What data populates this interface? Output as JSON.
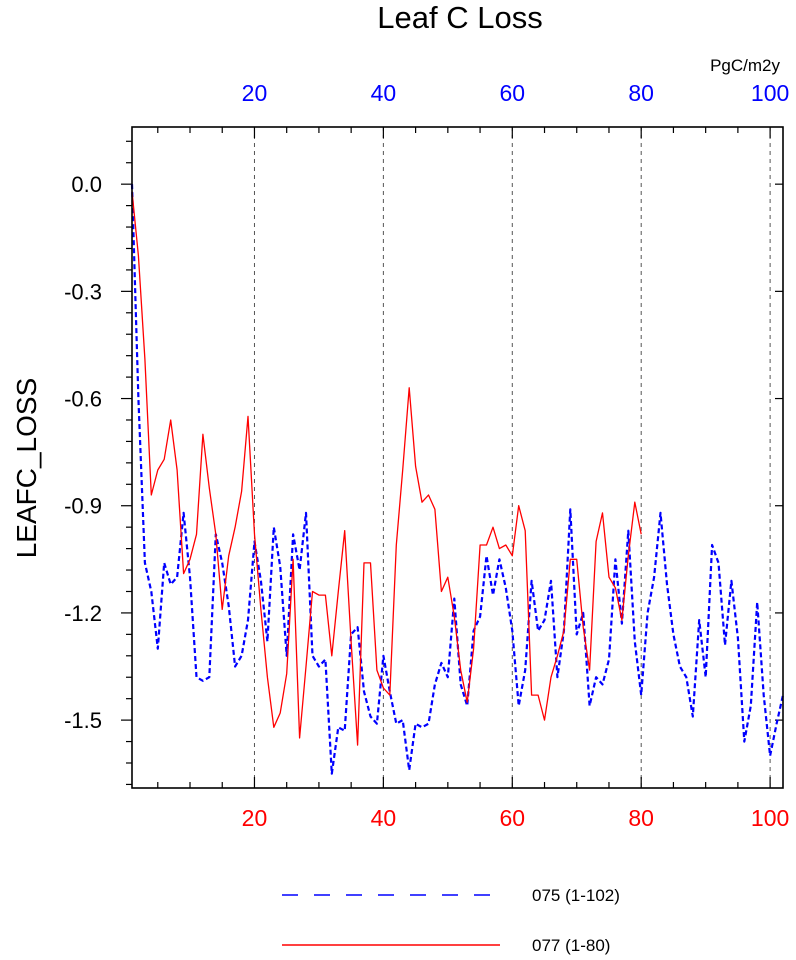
{
  "chart_data": {
    "type": "line",
    "title": "Leaf C Loss",
    "units": "PgC/m2y",
    "ylabel": "LEAFC_LOSS",
    "xlabel": "",
    "xlim": [
      1,
      102
    ],
    "ylim": [
      -1.69,
      0.16
    ],
    "y_ticks": [
      "0.0",
      "-0.3",
      "-0.6",
      "-0.9",
      "-1.2",
      "-1.5"
    ],
    "x_ticks_top": [
      "20",
      "40",
      "60",
      "80",
      "100"
    ],
    "x_ticks_bottom": [
      "20",
      "40",
      "60",
      "80",
      "100"
    ],
    "grid": "vertical dashed lines at x = 20, 40, 60, 80, 100",
    "legend_position": "bottom-center",
    "series": [
      {
        "name": "075 (1-102)",
        "color": "#0000ff",
        "style": "dashed",
        "x": [
          1,
          2,
          3,
          4,
          5,
          6,
          7,
          8,
          9,
          10,
          11,
          12,
          13,
          14,
          15,
          16,
          17,
          18,
          19,
          20,
          21,
          22,
          23,
          24,
          25,
          26,
          27,
          28,
          29,
          30,
          31,
          32,
          33,
          34,
          35,
          36,
          37,
          38,
          39,
          40,
          41,
          42,
          43,
          44,
          45,
          46,
          47,
          48,
          49,
          50,
          51,
          52,
          53,
          54,
          55,
          56,
          57,
          58,
          59,
          60,
          61,
          62,
          63,
          64,
          65,
          66,
          67,
          68,
          69,
          70,
          71,
          72,
          73,
          74,
          75,
          76,
          77,
          78,
          79,
          80,
          81,
          82,
          83,
          84,
          85,
          86,
          87,
          88,
          89,
          90,
          91,
          92,
          93,
          94,
          95,
          96,
          97,
          98,
          99,
          100,
          101,
          102
        ],
        "values": [
          0.0,
          -0.6,
          -1.06,
          -1.14,
          -1.3,
          -1.06,
          -1.12,
          -1.1,
          -0.92,
          -1.1,
          -1.38,
          -1.39,
          -1.38,
          -0.98,
          -1.06,
          -1.18,
          -1.35,
          -1.32,
          -1.22,
          -1.0,
          -1.11,
          -1.28,
          -0.96,
          -1.07,
          -1.32,
          -0.98,
          -1.08,
          -0.92,
          -1.32,
          -1.35,
          -1.33,
          -1.65,
          -1.52,
          -1.53,
          -1.26,
          -1.24,
          -1.42,
          -1.49,
          -1.51,
          -1.32,
          -1.42,
          -1.51,
          -1.5,
          -1.64,
          -1.51,
          -1.52,
          -1.51,
          -1.4,
          -1.34,
          -1.38,
          -1.16,
          -1.4,
          -1.46,
          -1.25,
          -1.21,
          -1.04,
          -1.15,
          -1.05,
          -1.13,
          -1.25,
          -1.46,
          -1.36,
          -1.11,
          -1.25,
          -1.22,
          -1.11,
          -1.38,
          -1.25,
          -0.91,
          -1.26,
          -1.2,
          -1.46,
          -1.38,
          -1.4,
          -1.33,
          -1.05,
          -1.23,
          -0.97,
          -1.28,
          -1.43,
          -1.2,
          -1.1,
          -0.92,
          -1.12,
          -1.26,
          -1.35,
          -1.38,
          -1.49,
          -1.22,
          -1.38,
          -1.01,
          -1.06,
          -1.29,
          -1.11,
          -1.27,
          -1.56,
          -1.46,
          -1.17,
          -1.43,
          -1.6,
          -1.51,
          -1.43
        ]
      },
      {
        "name": "077 (1-80)",
        "color": "#ff0000",
        "style": "solid",
        "x": [
          1,
          2,
          3,
          4,
          5,
          6,
          7,
          8,
          9,
          10,
          11,
          12,
          13,
          14,
          15,
          16,
          17,
          18,
          19,
          20,
          21,
          22,
          23,
          24,
          25,
          26,
          27,
          28,
          29,
          30,
          31,
          32,
          33,
          34,
          35,
          36,
          37,
          38,
          39,
          40,
          41,
          42,
          43,
          44,
          45,
          46,
          47,
          48,
          49,
          50,
          51,
          52,
          53,
          54,
          55,
          56,
          57,
          58,
          59,
          60,
          61,
          62,
          63,
          64,
          65,
          66,
          67,
          68,
          69,
          70,
          71,
          72,
          73,
          74,
          75,
          76,
          77,
          78,
          79,
          80
        ],
        "values": [
          -0.02,
          -0.2,
          -0.49,
          -0.87,
          -0.8,
          -0.77,
          -0.66,
          -0.8,
          -1.09,
          -1.05,
          -0.98,
          -0.7,
          -0.85,
          -0.98,
          -1.19,
          -1.04,
          -0.96,
          -0.86,
          -0.65,
          -0.98,
          -1.19,
          -1.38,
          -1.52,
          -1.48,
          -1.37,
          -1.05,
          -1.55,
          -1.35,
          -1.14,
          -1.15,
          -1.15,
          -1.32,
          -1.14,
          -0.97,
          -1.28,
          -1.57,
          -1.06,
          -1.06,
          -1.36,
          -1.41,
          -1.43,
          -1.01,
          -0.8,
          -0.57,
          -0.79,
          -0.89,
          -0.87,
          -0.91,
          -1.14,
          -1.1,
          -1.21,
          -1.36,
          -1.45,
          -1.3,
          -1.01,
          -1.01,
          -0.96,
          -1.02,
          -1.01,
          -1.04,
          -0.9,
          -0.97,
          -1.43,
          -1.43,
          -1.5,
          -1.38,
          -1.32,
          -1.25,
          -1.05,
          -1.05,
          -1.24,
          -1.36,
          -1.0,
          -0.92,
          -1.1,
          -1.13,
          -1.22,
          -1.04,
          -0.89,
          -0.98
        ]
      }
    ]
  }
}
